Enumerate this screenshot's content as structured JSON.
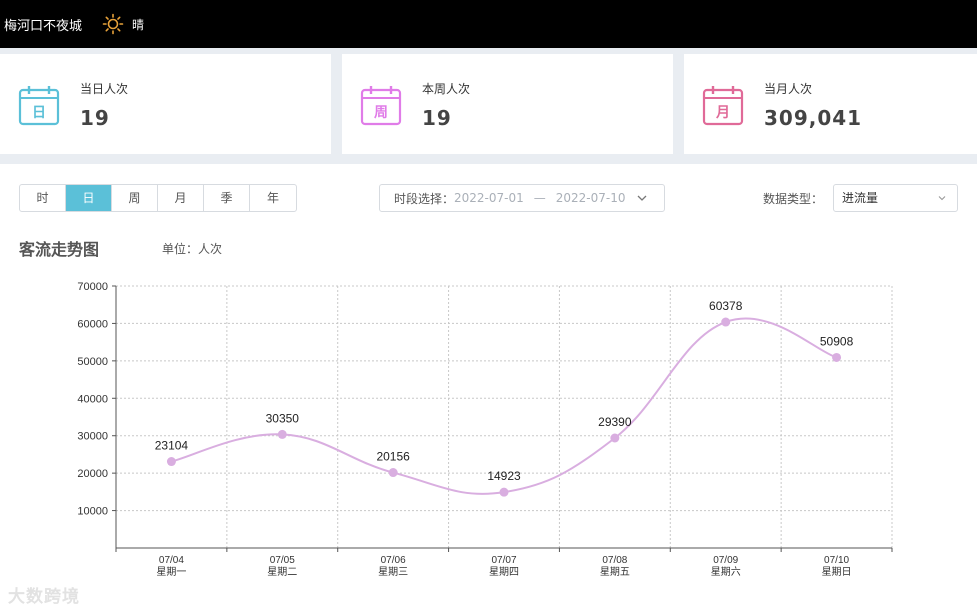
{
  "header": {
    "title": "梅河口不夜城",
    "weather_icon": "sun-icon",
    "weather": "晴"
  },
  "stats": [
    {
      "label": "当日人次",
      "value": "19",
      "icon_char": "日",
      "icon_color": "#5bc0d8"
    },
    {
      "label": "本周人次",
      "value": "19",
      "icon_char": "周",
      "icon_color": "#e07ce8"
    },
    {
      "label": "当月人次",
      "value": "309,041",
      "icon_char": "月",
      "icon_color": "#e06a98"
    }
  ],
  "granularity": {
    "options": [
      "时",
      "日",
      "周",
      "月",
      "季",
      "年"
    ],
    "active": "日"
  },
  "date_range": {
    "label": "时段选择：",
    "start": "2022-07-01",
    "separator": "—",
    "end": "2022-07-10"
  },
  "data_type": {
    "label": "数据类型：",
    "value": "进流量"
  },
  "chart_header": {
    "title": "客流走势图",
    "unit": "单位：人次"
  },
  "watermark": "大数跨境",
  "chart_data": {
    "type": "line",
    "categories": [
      "07/04",
      "07/05",
      "07/06",
      "07/07",
      "07/08",
      "07/09",
      "07/10"
    ],
    "category_sublabels": [
      "星期一",
      "星期二",
      "星期三",
      "星期四",
      "星期五",
      "星期六",
      "星期日"
    ],
    "series": [
      {
        "values": [
          23104,
          30350,
          20156,
          14923,
          29390,
          60378,
          50908
        ],
        "color": "#d9aee0"
      }
    ],
    "ylim": [
      0,
      70000
    ],
    "yticks": [
      "10000",
      "20000",
      "30000",
      "40000",
      "50000",
      "60000",
      "70000"
    ],
    "smooth": true,
    "grid": "dotted"
  }
}
